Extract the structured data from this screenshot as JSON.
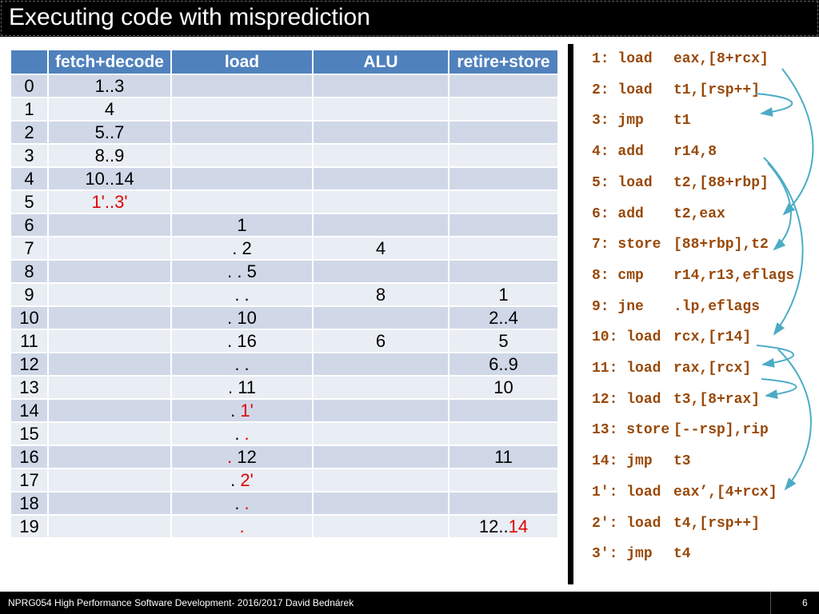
{
  "title": "Executing code with misprediction",
  "table": {
    "headers": [
      "",
      "fetch+decode",
      "load",
      "ALU",
      "retire+store"
    ],
    "rows": [
      [
        {
          "t": "0"
        },
        [
          {
            "t": "1..3"
          }
        ],
        [],
        [],
        []
      ],
      [
        {
          "t": "1"
        },
        [
          {
            "t": "4"
          }
        ],
        [],
        [],
        []
      ],
      [
        {
          "t": "2"
        },
        [
          {
            "t": "5..7"
          }
        ],
        [],
        [],
        []
      ],
      [
        {
          "t": "3"
        },
        [
          {
            "t": "8..9"
          }
        ],
        [],
        [],
        []
      ],
      [
        {
          "t": "4"
        },
        [
          {
            "t": "10..14"
          }
        ],
        [],
        [],
        []
      ],
      [
        {
          "t": "5"
        },
        [
          {
            "t": "1'..3'",
            "red": true
          }
        ],
        [],
        [],
        []
      ],
      [
        {
          "t": "6"
        },
        [],
        [
          {
            "t": "1"
          }
        ],
        [],
        []
      ],
      [
        {
          "t": "7"
        },
        [],
        [
          {
            "t": ". 2"
          }
        ],
        [
          {
            "t": "4"
          }
        ],
        []
      ],
      [
        {
          "t": "8"
        },
        [],
        [
          {
            "t": ". . 5"
          }
        ],
        [],
        []
      ],
      [
        {
          "t": "9"
        },
        [],
        [
          {
            "t": ". ."
          }
        ],
        [
          {
            "t": "8"
          }
        ],
        [
          {
            "t": "1"
          }
        ]
      ],
      [
        {
          "t": "10"
        },
        [],
        [
          {
            "t": ". 10"
          }
        ],
        [],
        [
          {
            "t": "2..4"
          }
        ]
      ],
      [
        {
          "t": "11"
        },
        [],
        [
          {
            "t": ". 16"
          }
        ],
        [
          {
            "t": "6"
          }
        ],
        [
          {
            "t": "5"
          }
        ]
      ],
      [
        {
          "t": "12"
        },
        [],
        [
          {
            "t": ". ."
          }
        ],
        [],
        [
          {
            "t": "6..9"
          }
        ]
      ],
      [
        {
          "t": "13"
        },
        [],
        [
          {
            "t": ". 11"
          }
        ],
        [],
        [
          {
            "t": "10"
          }
        ]
      ],
      [
        {
          "t": "14"
        },
        [],
        [
          {
            "t": ". "
          },
          {
            "t": "1'",
            "red": true
          }
        ],
        [],
        []
      ],
      [
        {
          "t": "15"
        },
        [],
        [
          {
            "t": ". "
          },
          {
            "t": ".",
            "red": true
          }
        ],
        [],
        []
      ],
      [
        {
          "t": "16"
        },
        [],
        [
          {
            "t": ".",
            "red": true
          },
          {
            "t": " 12"
          }
        ],
        [],
        [
          {
            "t": "11"
          }
        ]
      ],
      [
        {
          "t": "17"
        },
        [],
        [
          {
            "t": ". "
          },
          {
            "t": "2'",
            "red": true
          }
        ],
        [],
        []
      ],
      [
        {
          "t": "18"
        },
        [],
        [
          {
            "t": ". "
          },
          {
            "t": ".",
            "red": true
          }
        ],
        [],
        []
      ],
      [
        {
          "t": "19"
        },
        [],
        [
          {
            "t": ".",
            "red": true
          }
        ],
        [],
        [
          {
            "t": "12.."
          },
          {
            "t": "14",
            "red": true
          }
        ]
      ]
    ]
  },
  "code": [
    {
      "num": "1:",
      "op": "load",
      "args": "eax,[8+rcx]"
    },
    {
      "num": "2:",
      "op": "load",
      "args": "t1,[rsp++]"
    },
    {
      "num": "3:",
      "op": "jmp",
      "args": "t1"
    },
    {
      "num": "4:",
      "op": "add",
      "args": "r14,8"
    },
    {
      "num": "5:",
      "op": "load",
      "args": "t2,[88+rbp]"
    },
    {
      "num": "6:",
      "op": "add",
      "args": "t2,eax"
    },
    {
      "num": "7:",
      "op": "store",
      "args": "[88+rbp],t2"
    },
    {
      "num": "8:",
      "op": "cmp",
      "args": "r14,r13,eflags"
    },
    {
      "num": "9:",
      "op": "jne",
      "args": ".lp,eflags"
    },
    {
      "num": "10:",
      "op": "load",
      "args": "rcx,[r14]"
    },
    {
      "num": "11:",
      "op": "load",
      "args": "rax,[rcx]"
    },
    {
      "num": "12:",
      "op": "load",
      "args": "t3,[8+rax]"
    },
    {
      "num": "13:",
      "op": "store",
      "args": "[--rsp],rip"
    },
    {
      "num": "14:",
      "op": "jmp",
      "args": "t3"
    },
    {
      "num": "1':",
      "op": "load",
      "args": "eax’,[4+rcx]"
    },
    {
      "num": "2':",
      "op": "load",
      "args": "t4,[rsp++]"
    },
    {
      "num": "3':",
      "op": "jmp",
      "args": "t4"
    }
  ],
  "footer": {
    "text": "NPRG054 High Performance Software Development- 2016/2017 David Bednárek",
    "page": "6"
  },
  "colors": {
    "header_bg": "#4f81bd",
    "row_dark": "#d0d8e8",
    "row_light": "#e9edf4",
    "code_text": "#984807",
    "arrow": "#4bacc6",
    "mispredict": "#e00000"
  }
}
